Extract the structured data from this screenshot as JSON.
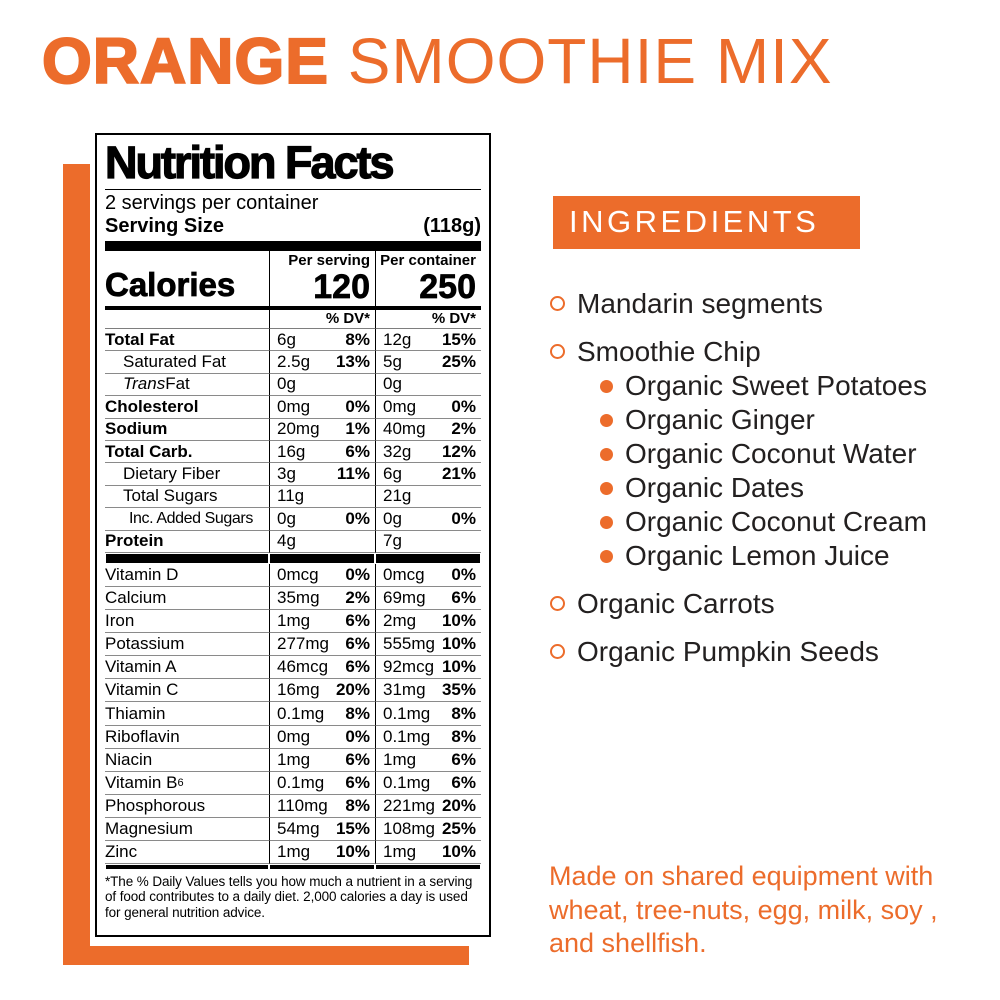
{
  "colors": {
    "accent": "#EC6C2B",
    "text_dark": "#232020",
    "label_ink": "#000000"
  },
  "title": {
    "bold": "ORANGE",
    "regular": " SMOOTHIE MIX"
  },
  "nutrition": {
    "heading": "Nutrition Facts",
    "servings_per_container": "2 servings per container",
    "serving_size_label": "Serving Size",
    "serving_size_value": "(118g)",
    "calories_label": "Calories",
    "col_serving_header": "Per serving",
    "col_container_header": "Per container",
    "calories_per_serving": "120",
    "calories_per_container": "250",
    "dv_header": "% DV*",
    "rows_main": [
      {
        "name": "Total Fat",
        "bold": true,
        "serving": {
          "amount": "6g",
          "dv": "8%"
        },
        "container": {
          "amount": "12g",
          "dv": "15%"
        }
      },
      {
        "name": "Saturated Fat",
        "indent": 1,
        "serving": {
          "amount": "2.5g",
          "dv": "13%"
        },
        "container": {
          "amount": "5g",
          "dv": "25%"
        }
      },
      {
        "name_italic": "Trans",
        "name": " Fat",
        "indent": 1,
        "serving": {
          "amount": "0g",
          "dv": ""
        },
        "container": {
          "amount": "0g",
          "dv": ""
        }
      },
      {
        "name": "Cholesterol",
        "bold": true,
        "serving": {
          "amount": "0mg",
          "dv": "0%"
        },
        "container": {
          "amount": "0mg",
          "dv": "0%"
        }
      },
      {
        "name": "Sodium",
        "bold": true,
        "serving": {
          "amount": "20mg",
          "dv": "1%"
        },
        "container": {
          "amount": "40mg",
          "dv": "2%"
        }
      },
      {
        "name": "Total Carb.",
        "bold": true,
        "serving": {
          "amount": "16g",
          "dv": "6%"
        },
        "container": {
          "amount": "32g",
          "dv": "12%"
        }
      },
      {
        "name": "Dietary Fiber",
        "indent": 1,
        "serving": {
          "amount": "3g",
          "dv": "11%"
        },
        "container": {
          "amount": "6g",
          "dv": "21%"
        }
      },
      {
        "name": "Total Sugars",
        "indent": 1,
        "serving": {
          "amount": "11g",
          "dv": ""
        },
        "container": {
          "amount": "21g",
          "dv": ""
        }
      },
      {
        "name": "Inc. Added Sugars",
        "indent": 2,
        "serving": {
          "amount": "0g",
          "dv": "0%"
        },
        "container": {
          "amount": "0g",
          "dv": "0%"
        }
      },
      {
        "name": "Protein",
        "bold": true,
        "serving": {
          "amount": "4g",
          "dv": ""
        },
        "container": {
          "amount": "7g",
          "dv": ""
        }
      }
    ],
    "rows_vitamins": [
      {
        "name": "Vitamin D",
        "serving": {
          "amount": "0mcg",
          "dv": "0%"
        },
        "container": {
          "amount": "0mcg",
          "dv": "0%"
        }
      },
      {
        "name": "Calcium",
        "serving": {
          "amount": "35mg",
          "dv": "2%"
        },
        "container": {
          "amount": "69mg",
          "dv": "6%"
        }
      },
      {
        "name": "Iron",
        "serving": {
          "amount": "1mg",
          "dv": "6%"
        },
        "container": {
          "amount": "2mg",
          "dv": "10%"
        }
      },
      {
        "name": "Potassium",
        "serving": {
          "amount": "277mg",
          "dv": "6%"
        },
        "container": {
          "amount": "555mg",
          "dv": "10%"
        }
      },
      {
        "name": "Vitamin A",
        "serving": {
          "amount": "46mcg",
          "dv": "6%"
        },
        "container": {
          "amount": "92mcg",
          "dv": "10%"
        }
      },
      {
        "name": "Vitamin C",
        "serving": {
          "amount": "16mg",
          "dv": "20%"
        },
        "container": {
          "amount": "31mg",
          "dv": "35%"
        }
      },
      {
        "name": "Thiamin",
        "serving": {
          "amount": "0.1mg",
          "dv": "8%"
        },
        "container": {
          "amount": "0.1mg",
          "dv": "8%"
        }
      },
      {
        "name": "Riboflavin",
        "serving": {
          "amount": "0mg",
          "dv": "0%"
        },
        "container": {
          "amount": "0.1mg",
          "dv": "8%"
        }
      },
      {
        "name": "Niacin",
        "serving": {
          "amount": "1mg",
          "dv": "6%"
        },
        "container": {
          "amount": "1mg",
          "dv": "6%"
        }
      },
      {
        "name": "Vitamin B",
        "name_sub": "6",
        "serving": {
          "amount": "0.1mg",
          "dv": "6%"
        },
        "container": {
          "amount": "0.1mg",
          "dv": "6%"
        }
      },
      {
        "name": "Phosphorous",
        "serving": {
          "amount": "110mg",
          "dv": "8%"
        },
        "container": {
          "amount": "221mg",
          "dv": "20%"
        }
      },
      {
        "name": "Magnesium",
        "serving": {
          "amount": "54mg",
          "dv": "15%"
        },
        "container": {
          "amount": "108mg",
          "dv": "25%"
        }
      },
      {
        "name": "Zinc",
        "serving": {
          "amount": "1mg",
          "dv": "10%"
        },
        "container": {
          "amount": "1mg",
          "dv": "10%"
        }
      }
    ],
    "footnote": "*The % Daily Values tells you how much a nutrient in a serving of food contributes to a daily diet. 2,000 calories a day is used for general nutrition advice."
  },
  "ingredients": {
    "heading": "INGREDIENTS",
    "items": [
      {
        "label": "Mandarin segments",
        "sub": []
      },
      {
        "label": "Smoothie Chip",
        "sub": [
          "Organic Sweet Potatoes",
          "Organic Ginger",
          "Organic Coconut Water",
          "Organic Dates",
          "Organic Coconut Cream",
          "Organic Lemon Juice"
        ]
      },
      {
        "label": "Organic Carrots",
        "sub": []
      },
      {
        "label": "Organic Pumpkin Seeds",
        "sub": []
      }
    ],
    "allergen_note": "Made on shared equipment with wheat, tree-nuts, egg, milk, soy , and shellfish."
  }
}
